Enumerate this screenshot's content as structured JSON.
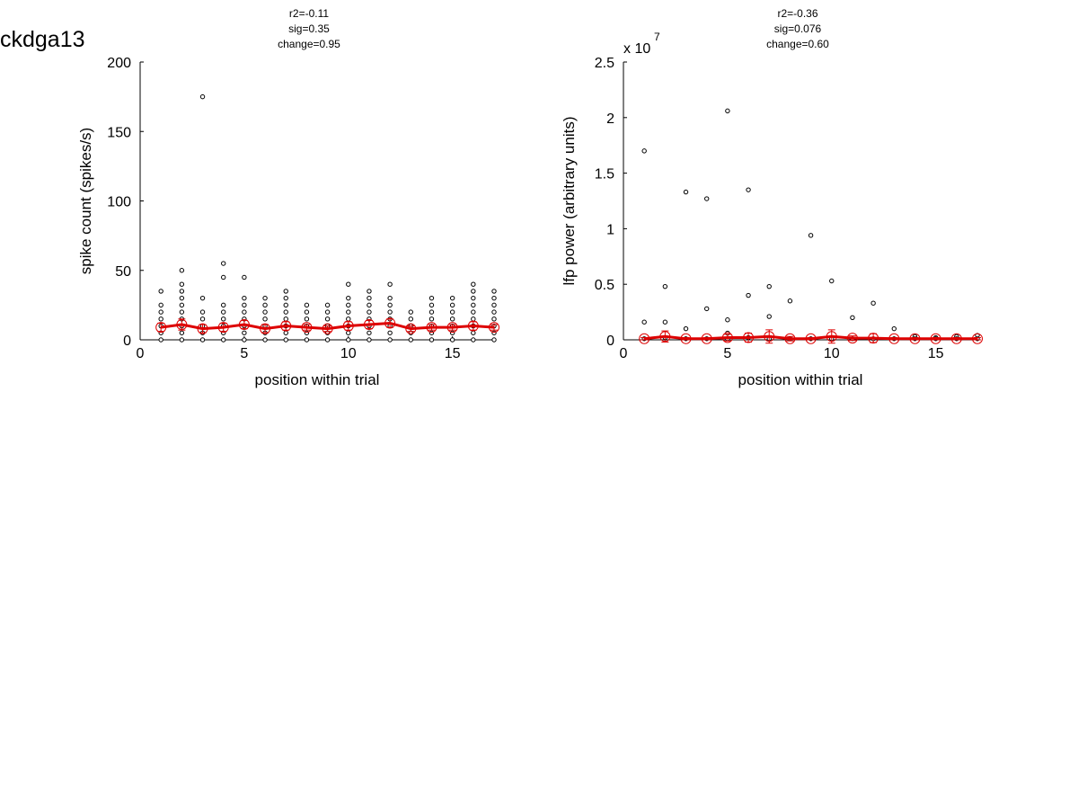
{
  "figure_title": "ckdga13",
  "colors": {
    "mean_line": "#dd0000",
    "points": "#000000",
    "marker": "#dd0000"
  },
  "chart_data": [
    {
      "type": "scatter",
      "title_lines": [
        "r2=-0.11",
        "sig=0.35",
        "change=0.95"
      ],
      "xlabel": "position within trial",
      "ylabel": "spike count (spikes/s)",
      "xlim": [
        0,
        17
      ],
      "ylim": [
        0,
        200
      ],
      "xticks": [
        0,
        5,
        10,
        15
      ],
      "yticks": [
        0,
        50,
        100,
        150,
        200
      ],
      "ytick_labels": [
        "0",
        "50",
        "100",
        "150",
        "200"
      ],
      "exponent_label": "",
      "grid": false,
      "points": [
        [
          1,
          0
        ],
        [
          1,
          5
        ],
        [
          1,
          10
        ],
        [
          1,
          15
        ],
        [
          1,
          20
        ],
        [
          1,
          25
        ],
        [
          1,
          35
        ],
        [
          2,
          0
        ],
        [
          2,
          5
        ],
        [
          2,
          10
        ],
        [
          2,
          15
        ],
        [
          2,
          20
        ],
        [
          2,
          25
        ],
        [
          2,
          30
        ],
        [
          2,
          35
        ],
        [
          2,
          40
        ],
        [
          2,
          50
        ],
        [
          3,
          0
        ],
        [
          3,
          5
        ],
        [
          3,
          10
        ],
        [
          3,
          15
        ],
        [
          3,
          20
        ],
        [
          3,
          30
        ],
        [
          3,
          175
        ],
        [
          4,
          0
        ],
        [
          4,
          5
        ],
        [
          4,
          10
        ],
        [
          4,
          15
        ],
        [
          4,
          20
        ],
        [
          4,
          25
        ],
        [
          4,
          45
        ],
        [
          4,
          55
        ],
        [
          5,
          0
        ],
        [
          5,
          5
        ],
        [
          5,
          10
        ],
        [
          5,
          15
        ],
        [
          5,
          20
        ],
        [
          5,
          25
        ],
        [
          5,
          30
        ],
        [
          5,
          45
        ],
        [
          6,
          0
        ],
        [
          6,
          5
        ],
        [
          6,
          10
        ],
        [
          6,
          15
        ],
        [
          6,
          20
        ],
        [
          6,
          25
        ],
        [
          6,
          30
        ],
        [
          7,
          0
        ],
        [
          7,
          5
        ],
        [
          7,
          10
        ],
        [
          7,
          15
        ],
        [
          7,
          20
        ],
        [
          7,
          25
        ],
        [
          7,
          30
        ],
        [
          7,
          35
        ],
        [
          8,
          0
        ],
        [
          8,
          5
        ],
        [
          8,
          10
        ],
        [
          8,
          15
        ],
        [
          8,
          20
        ],
        [
          8,
          25
        ],
        [
          9,
          0
        ],
        [
          9,
          5
        ],
        [
          9,
          10
        ],
        [
          9,
          15
        ],
        [
          9,
          20
        ],
        [
          9,
          25
        ],
        [
          10,
          0
        ],
        [
          10,
          5
        ],
        [
          10,
          10
        ],
        [
          10,
          15
        ],
        [
          10,
          20
        ],
        [
          10,
          25
        ],
        [
          10,
          30
        ],
        [
          10,
          40
        ],
        [
          11,
          0
        ],
        [
          11,
          5
        ],
        [
          11,
          10
        ],
        [
          11,
          15
        ],
        [
          11,
          20
        ],
        [
          11,
          25
        ],
        [
          11,
          30
        ],
        [
          11,
          35
        ],
        [
          12,
          0
        ],
        [
          12,
          5
        ],
        [
          12,
          10
        ],
        [
          12,
          15
        ],
        [
          12,
          20
        ],
        [
          12,
          25
        ],
        [
          12,
          30
        ],
        [
          12,
          40
        ],
        [
          13,
          0
        ],
        [
          13,
          5
        ],
        [
          13,
          10
        ],
        [
          13,
          15
        ],
        [
          13,
          20
        ],
        [
          14,
          0
        ],
        [
          14,
          5
        ],
        [
          14,
          10
        ],
        [
          14,
          15
        ],
        [
          14,
          20
        ],
        [
          14,
          25
        ],
        [
          14,
          30
        ],
        [
          15,
          0
        ],
        [
          15,
          5
        ],
        [
          15,
          10
        ],
        [
          15,
          15
        ],
        [
          15,
          20
        ],
        [
          15,
          25
        ],
        [
          15,
          30
        ],
        [
          16,
          0
        ],
        [
          16,
          5
        ],
        [
          16,
          10
        ],
        [
          16,
          15
        ],
        [
          16,
          20
        ],
        [
          16,
          25
        ],
        [
          16,
          30
        ],
        [
          16,
          35
        ],
        [
          16,
          40
        ],
        [
          17,
          0
        ],
        [
          17,
          5
        ],
        [
          17,
          10
        ],
        [
          17,
          15
        ],
        [
          17,
          20
        ],
        [
          17,
          25
        ],
        [
          17,
          30
        ],
        [
          17,
          35
        ]
      ],
      "mean": [
        9,
        11,
        8,
        9,
        11,
        8,
        10,
        9,
        8,
        10,
        11,
        12,
        8,
        9,
        9,
        10,
        9
      ],
      "sem": [
        3,
        4,
        3,
        3,
        3,
        3,
        3,
        2,
        2,
        3,
        3,
        3,
        2,
        2,
        2,
        3,
        2
      ]
    },
    {
      "type": "scatter",
      "title_lines": [
        "r2=-0.36",
        "sig=0.076",
        "change=0.60"
      ],
      "xlabel": "position within trial",
      "ylabel": "lfp power (arbitrary units)",
      "xlim": [
        0,
        17
      ],
      "ylim": [
        0,
        25000000
      ],
      "xticks": [
        0,
        5,
        10,
        15
      ],
      "yticks": [
        0,
        5000000,
        10000000,
        15000000,
        20000000,
        25000000
      ],
      "ytick_labels": [
        "0",
        "0.5",
        "1",
        "1.5",
        "2",
        "2.5"
      ],
      "exponent_label": "x 10",
      "exponent_power": "7",
      "grid": false,
      "points": [
        [
          1,
          17000000
        ],
        [
          1,
          1600000
        ],
        [
          1,
          100000
        ],
        [
          2,
          4800000
        ],
        [
          2,
          1600000
        ],
        [
          2,
          200000
        ],
        [
          3,
          13300000
        ],
        [
          3,
          1000000
        ],
        [
          3,
          100000
        ],
        [
          4,
          12700000
        ],
        [
          4,
          2800000
        ],
        [
          4,
          100000
        ],
        [
          5,
          20600000
        ],
        [
          5,
          1800000
        ],
        [
          5,
          600000
        ],
        [
          5,
          100000
        ],
        [
          6,
          13500000
        ],
        [
          6,
          4000000
        ],
        [
          6,
          200000
        ],
        [
          7,
          4800000
        ],
        [
          7,
          2100000
        ],
        [
          7,
          100000
        ],
        [
          8,
          3500000
        ],
        [
          8,
          100000
        ],
        [
          9,
          9400000
        ],
        [
          9,
          100000
        ],
        [
          10,
          5300000
        ],
        [
          10,
          100000
        ],
        [
          11,
          2000000
        ],
        [
          11,
          100000
        ],
        [
          12,
          3300000
        ],
        [
          12,
          100000
        ],
        [
          13,
          1000000
        ],
        [
          13,
          100000
        ],
        [
          14,
          300000
        ],
        [
          14,
          100000
        ],
        [
          15,
          200000
        ],
        [
          15,
          100000
        ],
        [
          16,
          300000
        ],
        [
          16,
          100000
        ],
        [
          17,
          400000
        ],
        [
          17,
          100000
        ]
      ],
      "mean": [
        100000,
        300000,
        100000,
        100000,
        200000,
        200000,
        300000,
        100000,
        100000,
        300000,
        150000,
        150000,
        100000,
        100000,
        100000,
        100000,
        100000
      ],
      "sem": [
        100000,
        500000,
        100000,
        100000,
        300000,
        400000,
        600000,
        200000,
        100000,
        600000,
        200000,
        400000,
        100000,
        100000,
        100000,
        100000,
        100000
      ]
    }
  ]
}
